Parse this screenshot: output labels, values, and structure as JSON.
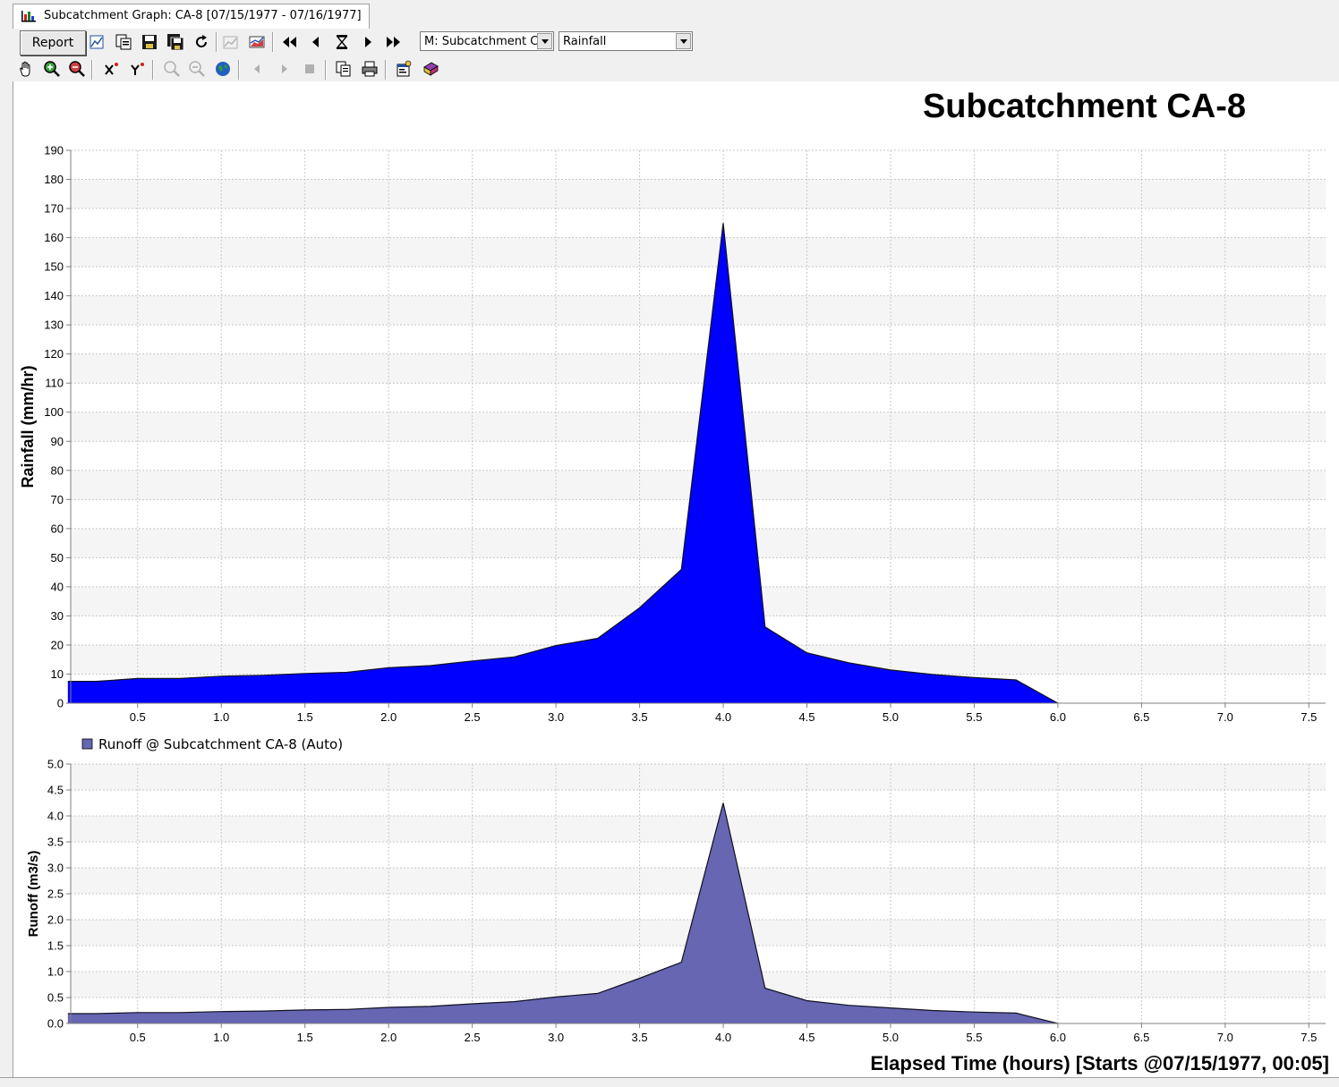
{
  "window": {
    "tab_title": "Subcatchment Graph: CA-8 [07/15/1977 - 07/16/1977]"
  },
  "toolbar": {
    "report_label": "Report",
    "object_combo_value": "M: Subcatchment CA",
    "variable_combo_value": "Rainfall"
  },
  "chart_data": [
    {
      "type": "area",
      "title": "Subcatchment CA-8",
      "xlabel": "",
      "ylabel": "Rainfall (mm/hr)",
      "xlim": [
        0.1,
        7.6
      ],
      "ylim": [
        0,
        190
      ],
      "x_ticks": [
        "0.5",
        "1.0",
        "1.5",
        "2.0",
        "2.5",
        "3.0",
        "3.5",
        "4.0",
        "4.5",
        "5.0",
        "5.5",
        "6.0",
        "6.5",
        "7.0",
        "7.5"
      ],
      "y_ticks": [
        "0",
        "10",
        "20",
        "30",
        "40",
        "50",
        "60",
        "70",
        "80",
        "90",
        "100",
        "110",
        "120",
        "130",
        "140",
        "150",
        "160",
        "170",
        "180",
        "190"
      ],
      "grid": true,
      "color": "#0000ff",
      "series": [
        {
          "x": [
            0.083,
            0.25,
            0.5,
            0.75,
            1.0,
            1.25,
            1.5,
            1.75,
            2.0,
            2.25,
            2.5,
            2.75,
            3.0,
            3.25,
            3.5,
            3.75,
            4.0,
            4.25,
            4.5,
            4.75,
            5.0,
            5.25,
            5.5,
            5.75,
            6.0
          ],
          "values": [
            7.5,
            7.5,
            8.5,
            8.5,
            9.3,
            9.6,
            10.2,
            10.6,
            12.2,
            12.9,
            14.5,
            15.9,
            19.8,
            22.3,
            32.8,
            46.0,
            165.0,
            26.2,
            17.3,
            13.9,
            11.4,
            9.9,
            8.8,
            8.0,
            0
          ]
        }
      ]
    },
    {
      "type": "area",
      "title": "",
      "xlabel": "Elapsed Time (hours) [Starts @07/15/1977, 00:05]",
      "ylabel": "Runoff (m3/s)",
      "xlim": [
        0.1,
        7.6
      ],
      "ylim": [
        0,
        5.0
      ],
      "x_ticks": [
        "0.5",
        "1.0",
        "1.5",
        "2.0",
        "2.5",
        "3.0",
        "3.5",
        "4.0",
        "4.5",
        "5.0",
        "5.5",
        "6.0",
        "6.5",
        "7.0",
        "7.5"
      ],
      "y_ticks": [
        "0.0",
        "0.5",
        "1.0",
        "1.5",
        "2.0",
        "2.5",
        "3.0",
        "3.5",
        "4.0",
        "4.5",
        "5.0"
      ],
      "grid": true,
      "legend_position": "top-left",
      "color": "#6666b3",
      "series": [
        {
          "name": "Runoff @ Subcatchment CA-8 (Auto)",
          "x": [
            0.083,
            0.25,
            0.5,
            0.75,
            1.0,
            1.25,
            1.5,
            1.75,
            2.0,
            2.25,
            2.5,
            2.75,
            3.0,
            3.25,
            3.5,
            3.75,
            4.0,
            4.25,
            4.5,
            4.75,
            5.0,
            5.25,
            5.5,
            5.75,
            6.0
          ],
          "values": [
            0.19,
            0.19,
            0.21,
            0.21,
            0.23,
            0.24,
            0.26,
            0.27,
            0.31,
            0.33,
            0.38,
            0.42,
            0.51,
            0.58,
            0.87,
            1.18,
            4.25,
            0.68,
            0.44,
            0.35,
            0.3,
            0.25,
            0.22,
            0.2,
            0
          ]
        }
      ]
    }
  ]
}
